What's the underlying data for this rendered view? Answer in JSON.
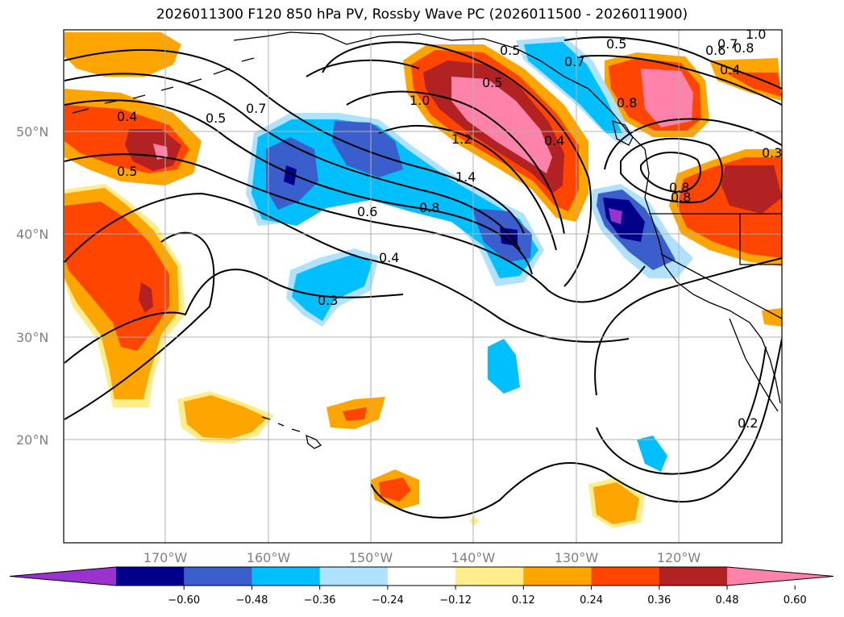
{
  "title": "2026011300 F120 850 hPa PV, Rossby Wave PC (2026011500 - 2026011900)",
  "map": {
    "lat_labels": [
      "50°N",
      "40°N",
      "30°N",
      "20°N"
    ],
    "lon_labels": [
      "170°W",
      "160°W",
      "150°W",
      "140°W",
      "130°W",
      "120°W"
    ],
    "gridlines": true,
    "coastlines": true
  },
  "colorbar": {
    "ticks": [
      "−0.60",
      "−0.48",
      "−0.36",
      "−0.24",
      "−0.12",
      "0.12",
      "0.24",
      "0.36",
      "0.48",
      "0.60"
    ],
    "colors": [
      "#9a32cd",
      "#00008b",
      "#3a5fcd",
      "#00bfff",
      "#b0e2ff",
      "#ffffff",
      "#ffec8b",
      "#ffa500",
      "#ff4500",
      "#b22222",
      "#ff82ab"
    ]
  },
  "contour_labels": [
    "0.5",
    "0.7",
    "0.4",
    "0.5",
    "0.5",
    "1.0",
    "1.2",
    "1.4",
    "0.6",
    "0.8",
    "0.4",
    "0.3",
    "0.5",
    "0.7",
    "0.4",
    "0.8",
    "0.8",
    "0.5",
    "0.6",
    "0.7",
    "0.8",
    "1.0",
    "0.4",
    "0.3",
    "0.8",
    "0.2"
  ]
}
